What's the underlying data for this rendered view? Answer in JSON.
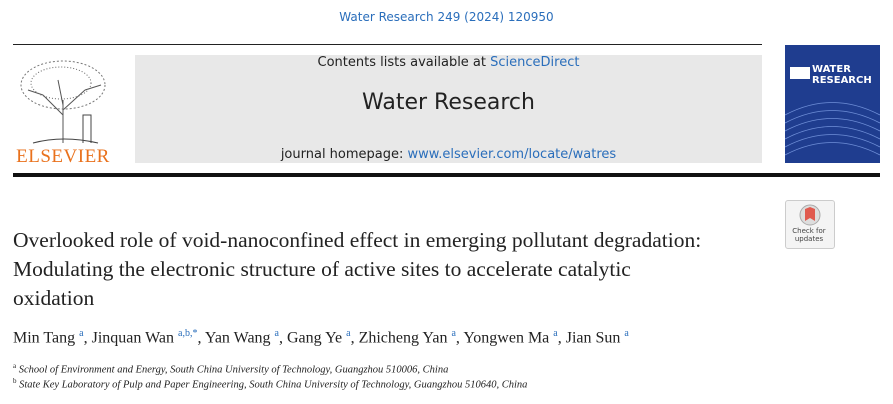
{
  "journal_ref": "Water Research 249 (2024) 120950",
  "header": {
    "contents_prefix": "Contents lists available at",
    "contents_link": "ScienceDirect",
    "journal_name": "Water Research",
    "homepage_prefix": "journal homepage:",
    "homepage_link": "www.elsevier.com/locate/watres"
  },
  "publisher": "ELSEVIER",
  "cover_title": "WATER RESEARCH",
  "badge": "Check for updates",
  "title": "Overlooked role of void-nanoconfined effect in emerging pollutant degradation: Modulating the electronic structure of active sites to accelerate catalytic oxidation",
  "author_separator": ",",
  "authors": [
    {
      "name": "Min Tang",
      "sup": "a"
    },
    {
      "name": "Jinquan Wan",
      "sup": "a,b,*"
    },
    {
      "name": "Yan Wang",
      "sup": "a"
    },
    {
      "name": "Gang Ye",
      "sup": "a"
    },
    {
      "name": "Zhicheng Yan",
      "sup": "a"
    },
    {
      "name": "Yongwen Ma",
      "sup": "a"
    },
    {
      "name": "Jian Sun",
      "sup": "a"
    }
  ],
  "affiliations": [
    {
      "label": "a",
      "text": "School of Environment and Energy, South China University of Technology, Guangzhou 510006, China"
    },
    {
      "label": "b",
      "text": "State Key Laboratory of Pulp and Paper Engineering, South China University of Technology, Guangzhou 510640, China"
    }
  ]
}
